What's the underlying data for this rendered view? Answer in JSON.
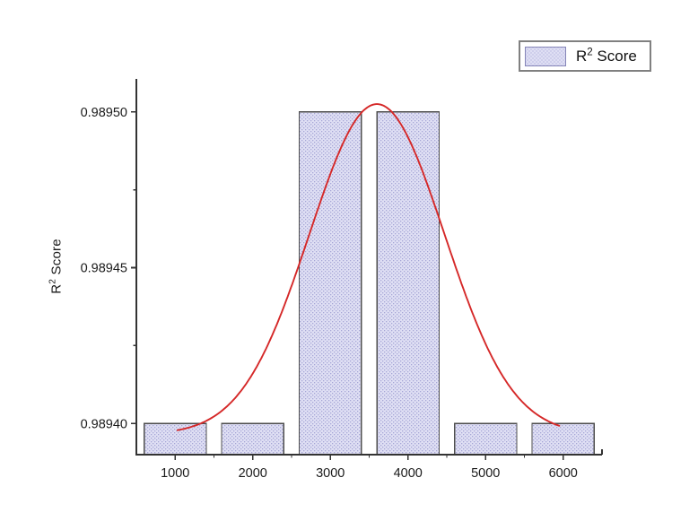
{
  "window": {
    "background": "#ffffff"
  },
  "y_axis_title": {
    "base": "R",
    "sup": "2",
    "rest": " Score"
  },
  "legend": {
    "base": "R",
    "sup": "2",
    "rest": " Score"
  },
  "chart_data": {
    "type": "bar",
    "title": "",
    "xlabel": "",
    "ylabel": "R² Score",
    "legend_entries": [
      "R² Score"
    ],
    "legend_position": "top-right",
    "categories": [
      1000,
      2000,
      3000,
      4000,
      5000,
      6000
    ],
    "values": [
      0.9894,
      0.9894,
      0.9895,
      0.9895,
      0.9894,
      0.9894
    ],
    "bar_width_units": 800,
    "xlim": [
      500,
      6500
    ],
    "ylim": [
      0.98939,
      0.98951
    ],
    "x_major_ticks": [
      1000,
      2000,
      3000,
      4000,
      5000,
      6000
    ],
    "x_tick_labels": [
      "1000",
      "2000",
      "3000",
      "4000",
      "5000",
      "6000"
    ],
    "x_minor_ticks": [
      1500,
      2500,
      3500,
      4500,
      5500
    ],
    "y_major_ticks": [
      0.9894,
      0.98945,
      0.9895
    ],
    "y_tick_labels": [
      "0.98940",
      "0.98945",
      "0.98950"
    ],
    "y_minor_ticks": [
      0.989425,
      0.989475
    ],
    "grid": false,
    "fit_curve": {
      "type": "gaussian",
      "center": 3600,
      "sigma": 870,
      "amplitude": 0.000106,
      "offset": 0.9893965,
      "x_start": 1030,
      "x_end": 5950
    },
    "colors": {
      "bar_fill": "#dfdff4",
      "bar_pattern_dot": "#a6a6d6",
      "bar_border": "#4d4d4d",
      "axis": "#333333",
      "tick_label": "#1a1a1a",
      "curve": "#d52828",
      "legend_border": "#808080",
      "background": "#ffffff"
    }
  }
}
